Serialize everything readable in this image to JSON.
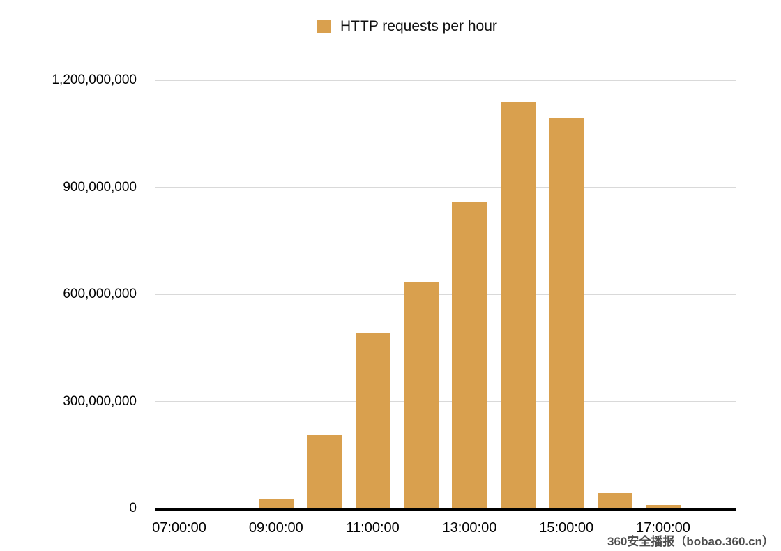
{
  "legend": {
    "label": "HTTP requests per hour"
  },
  "watermark": {
    "text": "360安全播报（bobao.360.cn）"
  },
  "colors": {
    "bar": "#D9A04E",
    "grid": "#D9D9D9",
    "axis": "#000000",
    "text": "#000000",
    "watermark": "#4D4D4D"
  },
  "y_axis": {
    "ticks": [
      {
        "label": "1,200,000,000",
        "value": 1200000000
      },
      {
        "label": "900,000,000",
        "value": 900000000
      },
      {
        "label": "600,000,000",
        "value": 600000000
      },
      {
        "label": "300,000,000",
        "value": 300000000
      },
      {
        "label": "0",
        "value": 0
      }
    ]
  },
  "x_axis": {
    "visible_ticks": [
      "07:00:00",
      "09:00:00",
      "11:00:00",
      "13:00:00",
      "15:00:00",
      "17:00:00"
    ]
  },
  "chart_data": {
    "type": "bar",
    "title": "HTTP requests per hour",
    "categories": [
      "07:00:00",
      "08:00:00",
      "09:00:00",
      "10:00:00",
      "11:00:00",
      "12:00:00",
      "13:00:00",
      "14:00:00",
      "15:00:00",
      "16:00:00",
      "17:00:00"
    ],
    "values": [
      0,
      0,
      25000000,
      205000000,
      490000000,
      633000000,
      860000000,
      1140000000,
      1095000000,
      43000000,
      9000000
    ],
    "xlabel": "",
    "ylabel": "",
    "ylim": [
      0,
      1200000000
    ],
    "grid": true,
    "legend_position": "top-center",
    "bar_color": "#D9A04E"
  }
}
